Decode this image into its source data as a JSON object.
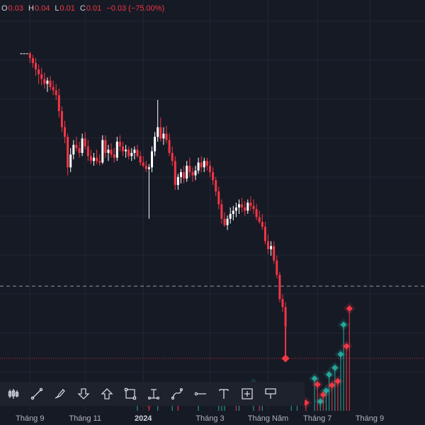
{
  "ohlc": {
    "o_label": "O",
    "o_value": "0.03",
    "h_label": "H",
    "h_value": "0.04",
    "l_label": "L",
    "l_value": "0.01",
    "c_label": "C",
    "c_value": "0.01",
    "change": "−0.03 (−75.00%)"
  },
  "colors": {
    "background": "#161a25",
    "up": "#ffffff",
    "down": "#f23645",
    "marker": "#26a69a",
    "toolbar": "#1e222d"
  },
  "toolbar": {
    "tools": [
      "bars-icon",
      "trend-line-icon",
      "brush-icon",
      "arrow-down-icon",
      "arrow-up-icon",
      "rectangle-icon",
      "text-cursor-icon",
      "path-icon",
      "horizontal-ray-icon",
      "text-icon",
      "crosshair-box-icon",
      "flag-icon"
    ]
  },
  "chart_data": {
    "type": "candlestick",
    "x_tick_labels": [
      "Tháng 9",
      "Tháng 11",
      "2024",
      "Tháng 3",
      "Tháng Năm",
      "Tháng 7",
      "Tháng 9"
    ],
    "x_tick_index": [
      3,
      22,
      42,
      65,
      85,
      102,
      120
    ],
    "ylim": [
      0.0,
      0.45
    ],
    "reference_lines": [
      {
        "style": "dashed",
        "value": 0.12
      },
      {
        "style": "dotted",
        "value": 0.03
      }
    ],
    "candles": [
      [
        0.41,
        0.41,
        0.41,
        0.41
      ],
      [
        0.41,
        0.41,
        0.41,
        0.41
      ],
      [
        0.41,
        0.41,
        0.41,
        0.41
      ],
      [
        0.41,
        0.412,
        0.398,
        0.404
      ],
      [
        0.404,
        0.408,
        0.392,
        0.398
      ],
      [
        0.398,
        0.404,
        0.382,
        0.39
      ],
      [
        0.39,
        0.396,
        0.372,
        0.384
      ],
      [
        0.384,
        0.392,
        0.37,
        0.378
      ],
      [
        0.378,
        0.386,
        0.366,
        0.372
      ],
      [
        0.372,
        0.38,
        0.362,
        0.376
      ],
      [
        0.376,
        0.382,
        0.364,
        0.368
      ],
      [
        0.368,
        0.376,
        0.358,
        0.364
      ],
      [
        0.364,
        0.372,
        0.352,
        0.358
      ],
      [
        0.358,
        0.366,
        0.33,
        0.338
      ],
      [
        0.338,
        0.344,
        0.312,
        0.318
      ],
      [
        0.318,
        0.326,
        0.298,
        0.306
      ],
      [
        0.306,
        0.31,
        0.258,
        0.268
      ],
      [
        0.268,
        0.292,
        0.262,
        0.284
      ],
      [
        0.284,
        0.302,
        0.278,
        0.296
      ],
      [
        0.296,
        0.306,
        0.288,
        0.292
      ],
      [
        0.292,
        0.3,
        0.28,
        0.286
      ],
      [
        0.286,
        0.31,
        0.282,
        0.304
      ],
      [
        0.304,
        0.312,
        0.29,
        0.294
      ],
      [
        0.294,
        0.302,
        0.276,
        0.282
      ],
      [
        0.282,
        0.29,
        0.272,
        0.276
      ],
      [
        0.276,
        0.286,
        0.27,
        0.28
      ],
      [
        0.28,
        0.29,
        0.272,
        0.276
      ],
      [
        0.276,
        0.284,
        0.27,
        0.274
      ],
      [
        0.274,
        0.308,
        0.272,
        0.302
      ],
      [
        0.302,
        0.308,
        0.28,
        0.286
      ],
      [
        0.286,
        0.296,
        0.276,
        0.29
      ],
      [
        0.29,
        0.298,
        0.28,
        0.284
      ],
      [
        0.284,
        0.292,
        0.274,
        0.28
      ],
      [
        0.28,
        0.306,
        0.276,
        0.3
      ],
      [
        0.3,
        0.308,
        0.288,
        0.294
      ],
      [
        0.294,
        0.3,
        0.282,
        0.288
      ],
      [
        0.288,
        0.296,
        0.28,
        0.29
      ],
      [
        0.29,
        0.294,
        0.278,
        0.282
      ],
      [
        0.282,
        0.292,
        0.276,
        0.286
      ],
      [
        0.286,
        0.294,
        0.278,
        0.29
      ],
      [
        0.29,
        0.296,
        0.28,
        0.282
      ],
      [
        0.282,
        0.288,
        0.27,
        0.274
      ],
      [
        0.274,
        0.282,
        0.268,
        0.27
      ],
      [
        0.27,
        0.276,
        0.262,
        0.266
      ],
      [
        0.266,
        0.272,
        0.204,
        0.268
      ],
      [
        0.268,
        0.294,
        0.262,
        0.288
      ],
      [
        0.288,
        0.312,
        0.282,
        0.306
      ],
      [
        0.306,
        0.352,
        0.3,
        0.318
      ],
      [
        0.318,
        0.33,
        0.3,
        0.304
      ],
      [
        0.304,
        0.318,
        0.296,
        0.31
      ],
      [
        0.31,
        0.32,
        0.298,
        0.302
      ],
      [
        0.302,
        0.31,
        0.282,
        0.286
      ],
      [
        0.286,
        0.294,
        0.27,
        0.276
      ],
      [
        0.276,
        0.282,
        0.24,
        0.246
      ],
      [
        0.246,
        0.26,
        0.24,
        0.256
      ],
      [
        0.256,
        0.266,
        0.248,
        0.262
      ],
      [
        0.262,
        0.27,
        0.248,
        0.254
      ],
      [
        0.254,
        0.276,
        0.25,
        0.27
      ],
      [
        0.27,
        0.28,
        0.256,
        0.262
      ],
      [
        0.262,
        0.268,
        0.25,
        0.258
      ],
      [
        0.258,
        0.27,
        0.252,
        0.264
      ],
      [
        0.264,
        0.28,
        0.26,
        0.274
      ],
      [
        0.274,
        0.282,
        0.262,
        0.268
      ],
      [
        0.268,
        0.28,
        0.262,
        0.276
      ],
      [
        0.276,
        0.28,
        0.264,
        0.27
      ],
      [
        0.27,
        0.276,
        0.256,
        0.262
      ],
      [
        0.262,
        0.268,
        0.246,
        0.252
      ],
      [
        0.252,
        0.256,
        0.232,
        0.238
      ],
      [
        0.238,
        0.244,
        0.216,
        0.222
      ],
      [
        0.222,
        0.228,
        0.198,
        0.204
      ],
      [
        0.204,
        0.212,
        0.194,
        0.196
      ],
      [
        0.196,
        0.208,
        0.19,
        0.204
      ],
      [
        0.204,
        0.218,
        0.198,
        0.21
      ],
      [
        0.21,
        0.22,
        0.202,
        0.214
      ],
      [
        0.214,
        0.224,
        0.206,
        0.218
      ],
      [
        0.218,
        0.228,
        0.21,
        0.222
      ],
      [
        0.222,
        0.23,
        0.212,
        0.218
      ],
      [
        0.218,
        0.226,
        0.208,
        0.214
      ],
      [
        0.214,
        0.228,
        0.21,
        0.224
      ],
      [
        0.224,
        0.232,
        0.214,
        0.22
      ],
      [
        0.22,
        0.228,
        0.21,
        0.216
      ],
      [
        0.216,
        0.222,
        0.202,
        0.206
      ],
      [
        0.206,
        0.214,
        0.198,
        0.2
      ],
      [
        0.2,
        0.21,
        0.19,
        0.194
      ],
      [
        0.194,
        0.2,
        0.172,
        0.176
      ],
      [
        0.176,
        0.184,
        0.16,
        0.166
      ],
      [
        0.166,
        0.176,
        0.158,
        0.17
      ],
      [
        0.17,
        0.176,
        0.148,
        0.152
      ],
      [
        0.152,
        0.158,
        0.13,
        0.134
      ],
      [
        0.134,
        0.138,
        0.1,
        0.104
      ],
      [
        0.104,
        0.11,
        0.088,
        0.094
      ],
      [
        0.094,
        0.1,
        0.066,
        0.07
      ]
    ],
    "volume_markers": [
      {
        "i": 40,
        "v": 0.55,
        "c": "#26a69a"
      },
      {
        "i": 44,
        "v": 0.3,
        "c": "#f23645"
      },
      {
        "i": 47,
        "v": 0.42,
        "c": "#26a69a"
      },
      {
        "i": 52,
        "v": 0.6,
        "c": "#26a69a"
      },
      {
        "i": 54,
        "v": 0.35,
        "c": "#f23645"
      },
      {
        "i": 61,
        "v": 0.5,
        "c": "#26a69a"
      },
      {
        "i": 68,
        "v": 0.85,
        "c": "#26a69a"
      },
      {
        "i": 69,
        "v": 0.78,
        "c": "#26a69a"
      },
      {
        "i": 70,
        "v": 0.62,
        "c": "#26a69a"
      },
      {
        "i": 74,
        "v": 0.45,
        "c": "#f23645"
      },
      {
        "i": 75,
        "v": 0.36,
        "c": "#26a69a"
      },
      {
        "i": 80,
        "v": 0.98,
        "c": "#26a69a"
      },
      {
        "i": 82,
        "v": 0.55,
        "c": "#f23645"
      },
      {
        "i": 83,
        "v": 0.48,
        "c": "#26a69a"
      },
      {
        "i": 93,
        "v": 0.88,
        "c": "#26a69a"
      },
      {
        "i": 95,
        "v": 0.4,
        "c": "#26a69a"
      },
      {
        "i": 98,
        "v": 0.3,
        "c": "#f23645"
      },
      {
        "i": 101,
        "v": 1.2,
        "c": "#26a69a"
      },
      {
        "i": 102,
        "v": 0.98,
        "c": "#f23645"
      },
      {
        "i": 103,
        "v": 0.35,
        "c": "#26a69a"
      },
      {
        "i": 104,
        "v": 0.6,
        "c": "#f23645"
      },
      {
        "i": 105,
        "v": 0.75,
        "c": "#26a69a"
      },
      {
        "i": 106,
        "v": 1.35,
        "c": "#26a69a"
      },
      {
        "i": 107,
        "v": 0.95,
        "c": "#f23645"
      },
      {
        "i": 108,
        "v": 1.6,
        "c": "#26a69a"
      },
      {
        "i": 109,
        "v": 1.1,
        "c": "#f23645"
      },
      {
        "i": 110,
        "v": 2.1,
        "c": "#26a69a"
      },
      {
        "i": 111,
        "v": 3.2,
        "c": "#26a69a"
      },
      {
        "i": 112,
        "v": 2.4,
        "c": "#f23645"
      },
      {
        "i": 113,
        "v": 3.8,
        "c": "#f23645"
      }
    ]
  }
}
